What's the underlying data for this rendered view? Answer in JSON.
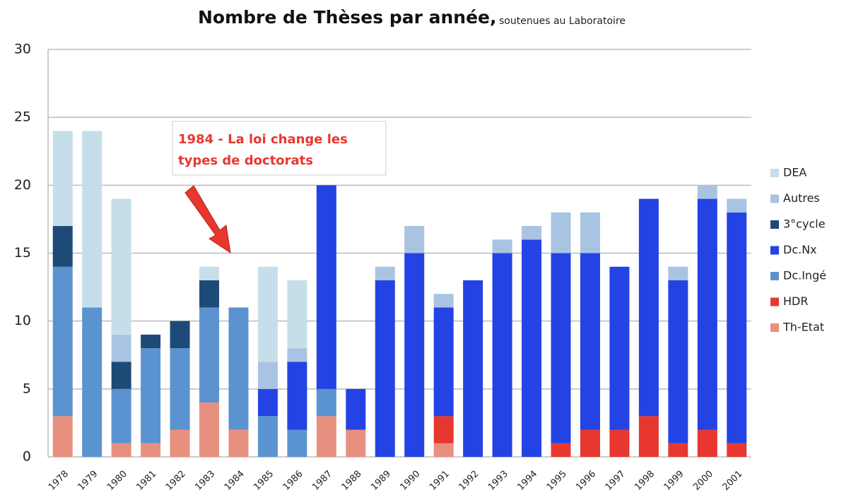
{
  "chart_data": {
    "type": "stacked_bar",
    "title": "Nombre de Thèses par année,",
    "subtitle": "soutenues au Laboratoire",
    "annotation": [
      "1984 - La loi change les",
      "types de doctorats"
    ],
    "categories": [
      "1978",
      "1979",
      "1980",
      "1981",
      "1982",
      "1983",
      "1984",
      "1985",
      "1986",
      "1987",
      "1988",
      "1989",
      "1990",
      "1991",
      "1992",
      "1993",
      "1994",
      "1995",
      "1996",
      "1997",
      "1998",
      "1999",
      "2000",
      "2001"
    ],
    "series": [
      {
        "name": "Th-Etat",
        "color": "#e8907f",
        "values": [
          3,
          0,
          1,
          1,
          2,
          4,
          2,
          0,
          0,
          3,
          2,
          0,
          0,
          1,
          0,
          0,
          0,
          0,
          0,
          0,
          0,
          0,
          0,
          0
        ]
      },
      {
        "name": "HDR",
        "color": "#e8372e",
        "values": [
          0,
          0,
          0,
          0,
          0,
          0,
          0,
          0,
          0,
          0,
          0,
          0,
          0,
          2,
          0,
          0,
          0,
          1,
          2,
          2,
          3,
          1,
          2,
          1
        ]
      },
      {
        "name": "Dc.Ingé",
        "color": "#5b93d0",
        "values": [
          11,
          11,
          4,
          7,
          6,
          7,
          9,
          3,
          2,
          2,
          0,
          0,
          0,
          0,
          0,
          0,
          0,
          0,
          0,
          0,
          0,
          0,
          0,
          0
        ]
      },
      {
        "name": "Dc.Nx",
        "color": "#2343e4",
        "values": [
          0,
          0,
          0,
          0,
          0,
          0,
          0,
          2,
          5,
          15,
          3,
          13,
          15,
          8,
          13,
          15,
          16,
          14,
          13,
          12,
          16,
          12,
          17,
          17
        ]
      },
      {
        "name": "3°cycle",
        "color": "#1e4a77",
        "values": [
          3,
          0,
          2,
          1,
          2,
          2,
          0,
          0,
          0,
          0,
          0,
          0,
          0,
          0,
          0,
          0,
          0,
          0,
          0,
          0,
          0,
          0,
          0,
          0
        ]
      },
      {
        "name": "Autres",
        "color": "#a9c3e3",
        "values": [
          0,
          0,
          2,
          0,
          0,
          0,
          0,
          2,
          1,
          0,
          0,
          1,
          2,
          1,
          0,
          1,
          1,
          3,
          3,
          0,
          0,
          1,
          1,
          1
        ]
      },
      {
        "name": "DEA",
        "color": "#c6dee9",
        "values": [
          7,
          13,
          10,
          0,
          0,
          1,
          0,
          7,
          5,
          0,
          0,
          0,
          0,
          0,
          0,
          0,
          0,
          0,
          0,
          0,
          0,
          0,
          0,
          0
        ]
      }
    ],
    "ylim": [
      0,
      30
    ],
    "yticks": [
      0,
      5,
      10,
      15,
      20,
      25,
      30
    ],
    "grid": true,
    "legend": "right"
  }
}
